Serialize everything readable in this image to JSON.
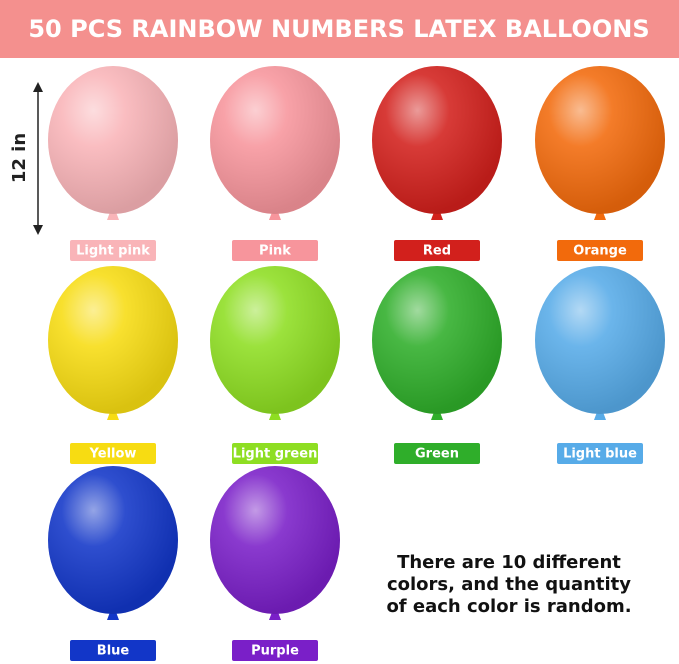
{
  "header": {
    "title": "50 PCS RAINBOW NUMBERS LATEX BALLOONS"
  },
  "size_label": "12 in",
  "balloons": [
    {
      "label": "Light pink",
      "color": "#f9b4b8"
    },
    {
      "label": "Pink",
      "color": "#f7959c"
    },
    {
      "label": "Red",
      "color": "#d2201c"
    },
    {
      "label": "Orange",
      "color": "#f26a0c"
    },
    {
      "label": "Yellow",
      "color": "#f7dc12"
    },
    {
      "label": "Light green",
      "color": "#8ede22"
    },
    {
      "label": "Green",
      "color": "#2fae2a"
    },
    {
      "label": "Light blue",
      "color": "#57abe8"
    },
    {
      "label": "Blue",
      "color": "#1236c8"
    },
    {
      "label": "Purple",
      "color": "#7a1fc8"
    }
  ],
  "note": [
    "There are 10 different",
    "colors, and the quantity",
    "of each color is random."
  ]
}
